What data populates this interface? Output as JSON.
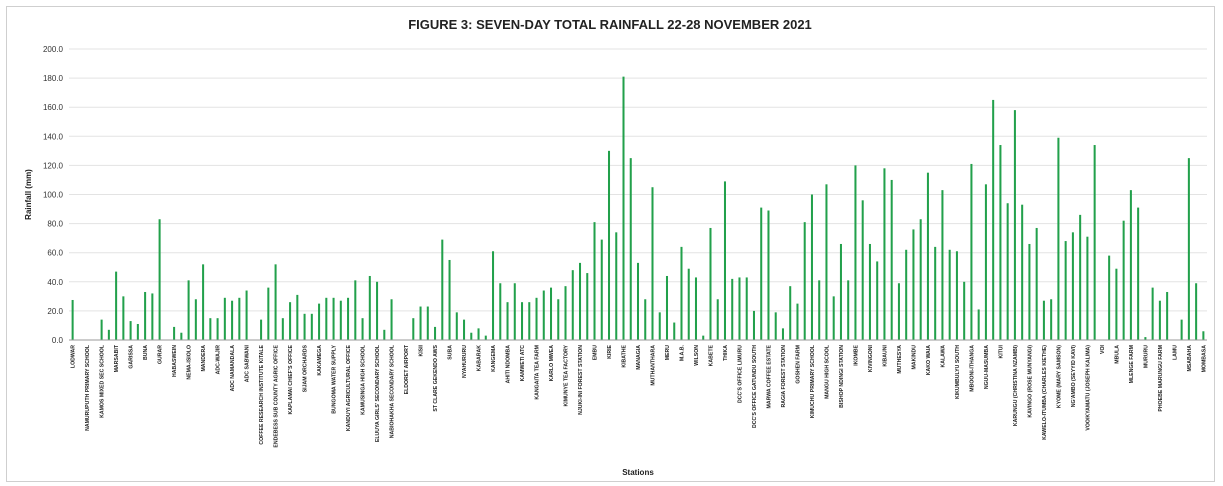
{
  "chart_data": {
    "type": "bar",
    "title": "FIGURE 3: SEVEN-DAY TOTAL RAINFALL 22-28 NOVEMBER 2021",
    "xlabel": "Stations",
    "ylabel": "Rainfall (mm)",
    "ylim": [
      0,
      200
    ],
    "yticks": [
      "0.0",
      "20.0",
      "40.0",
      "60.0",
      "80.0",
      "100.0",
      "120.0",
      "140.0",
      "160.0",
      "180.0",
      "200.0"
    ],
    "grid": true,
    "bar_color": "#22a04b",
    "categories": [
      "LODWAR",
      "",
      "NAMURUPUTH PRIMARY SCHOOL",
      "",
      "KAMOS MIXED SEC SCHOOL",
      "",
      "MARSABIT",
      "",
      "GARISSA",
      "",
      "BUNA",
      "",
      "GURAR",
      "",
      "HABASWEIN",
      "",
      "NEMA-ISIOLO",
      "",
      "MANDERA",
      "",
      "ADC-WAJIR",
      "",
      "ADC NAMANDALA",
      "",
      "ADC SABWANI",
      "",
      "COFFEE RESEARCH INSTITUTE KITALE",
      "",
      "ENDEBESS SUB COUNTY AGRIC OFFICE",
      "",
      "KAPLAMAI CHIEF'S OFFICE",
      "",
      "SIJAM ORCHARDS",
      "",
      "KAKAMEGA",
      "",
      "BUNGOMA WATER SUPPLY",
      "",
      "KANDUYI AGRICULTURAL OFFICE",
      "",
      "KAMUSINGA HIGH SCHOOL",
      "",
      "ELUUYA GIRLS' SECONDARY SCHOOL",
      "",
      "NABIOHAKHA SECONDARY SCHOOL",
      "",
      "ELDORET AIRPORT",
      "",
      "KISII",
      "",
      "ST CLARE GEKENDO AWS",
      "",
      "SUBA",
      "",
      "NYAHURURU",
      "",
      "KABARAK",
      "",
      "KANGEMA",
      "",
      "AHITI NDOMBA",
      "",
      "KAMWETI ATC",
      "",
      "KANGAITA TEA FARM",
      "",
      "KARLO MWEA",
      "",
      "KIMUNYE TEA FACTORY",
      "",
      "NJUKI-INI FOREST STATION",
      "",
      "EMBU",
      "",
      "KIRIE",
      "",
      "KIBATHE",
      "",
      "MANAGIA",
      "",
      "MUTHANTHARA",
      "",
      "MERU",
      "",
      "M.A.B.",
      "",
      "WILSON",
      "",
      "KABETE",
      "",
      "THIKA",
      "",
      "DCC'S OFFICE LIMURU",
      "",
      "DCC'S OFFICE GATUNDU SOUTH",
      "",
      "MARWA COFFEE ESTATE",
      "",
      "RAGIA FOREST STATION",
      "",
      "GOSHEN FARM",
      "",
      "KIMUCHU PRIMARY SCHOOL",
      "",
      "MANGU HIGH SCOOL",
      "",
      "BISHOP NDINGI STATION",
      "",
      "IKOMBE",
      "",
      "KIVINGONI",
      "",
      "KIBAUNI",
      "",
      "MUTHESYA",
      "",
      "MAKINDU",
      "",
      "KAKO WAIA",
      "",
      "KALAWA",
      "",
      "KIKUMBULYU SOUTH",
      "",
      "MBOONI-ITHANGA",
      "",
      "NGUU-MASUMBA",
      "",
      "KITUI",
      "",
      "KARUNGU (CHRISTINA NZAMBI)",
      "",
      "KAVINGO (ROSE MUNYANGI)",
      "",
      "KAWELO-ITUMBA (CHARLES KIETHE)",
      "",
      "KYOME (MARY SAMSON)",
      "",
      "NG'AMBO (SEYYID KAVI)",
      "",
      "VOO/KYAMATU (JOSEPH KALIMA)",
      "",
      "VOI",
      "",
      "MBULA",
      "",
      "MLENGE FARM",
      "",
      "MURURU",
      "",
      "PHOEBE MARUNGU FARM",
      "",
      "LAMU",
      "",
      "MSABAHA",
      "",
      "MOMBASA"
    ],
    "values": [
      27.5,
      0,
      0,
      0,
      14,
      7,
      47,
      30,
      13,
      11,
      33,
      32,
      83,
      0,
      9,
      5,
      41,
      28,
      52,
      15,
      15,
      29,
      27,
      29,
      34,
      0,
      14,
      36,
      52,
      15,
      26,
      31,
      18,
      18,
      25,
      29,
      29,
      27,
      29,
      41,
      15,
      44,
      40,
      7,
      28,
      0,
      0,
      15,
      23,
      23,
      9,
      69,
      55,
      19,
      14,
      5,
      8,
      3,
      61,
      39,
      26,
      39,
      26,
      26,
      29,
      34,
      36,
      28,
      37,
      48,
      53,
      46,
      81,
      69,
      130,
      74,
      181,
      125,
      53,
      28,
      105,
      19,
      44,
      12,
      64,
      49,
      43,
      3,
      77,
      28,
      109,
      42,
      43,
      43,
      20,
      91,
      89,
      19,
      8,
      37,
      25,
      81,
      100,
      41,
      107,
      30,
      66,
      41,
      120,
      96,
      66,
      54,
      118,
      110,
      39,
      62,
      76,
      83,
      115,
      64,
      103,
      62,
      61,
      40,
      121,
      21,
      107,
      165,
      134,
      94,
      158,
      93,
      66,
      77,
      27,
      28,
      139,
      68,
      74,
      86,
      71,
      134,
      0,
      58,
      49,
      82,
      103,
      91,
      2,
      36,
      27,
      33,
      0,
      14,
      125,
      39,
      6
    ]
  }
}
